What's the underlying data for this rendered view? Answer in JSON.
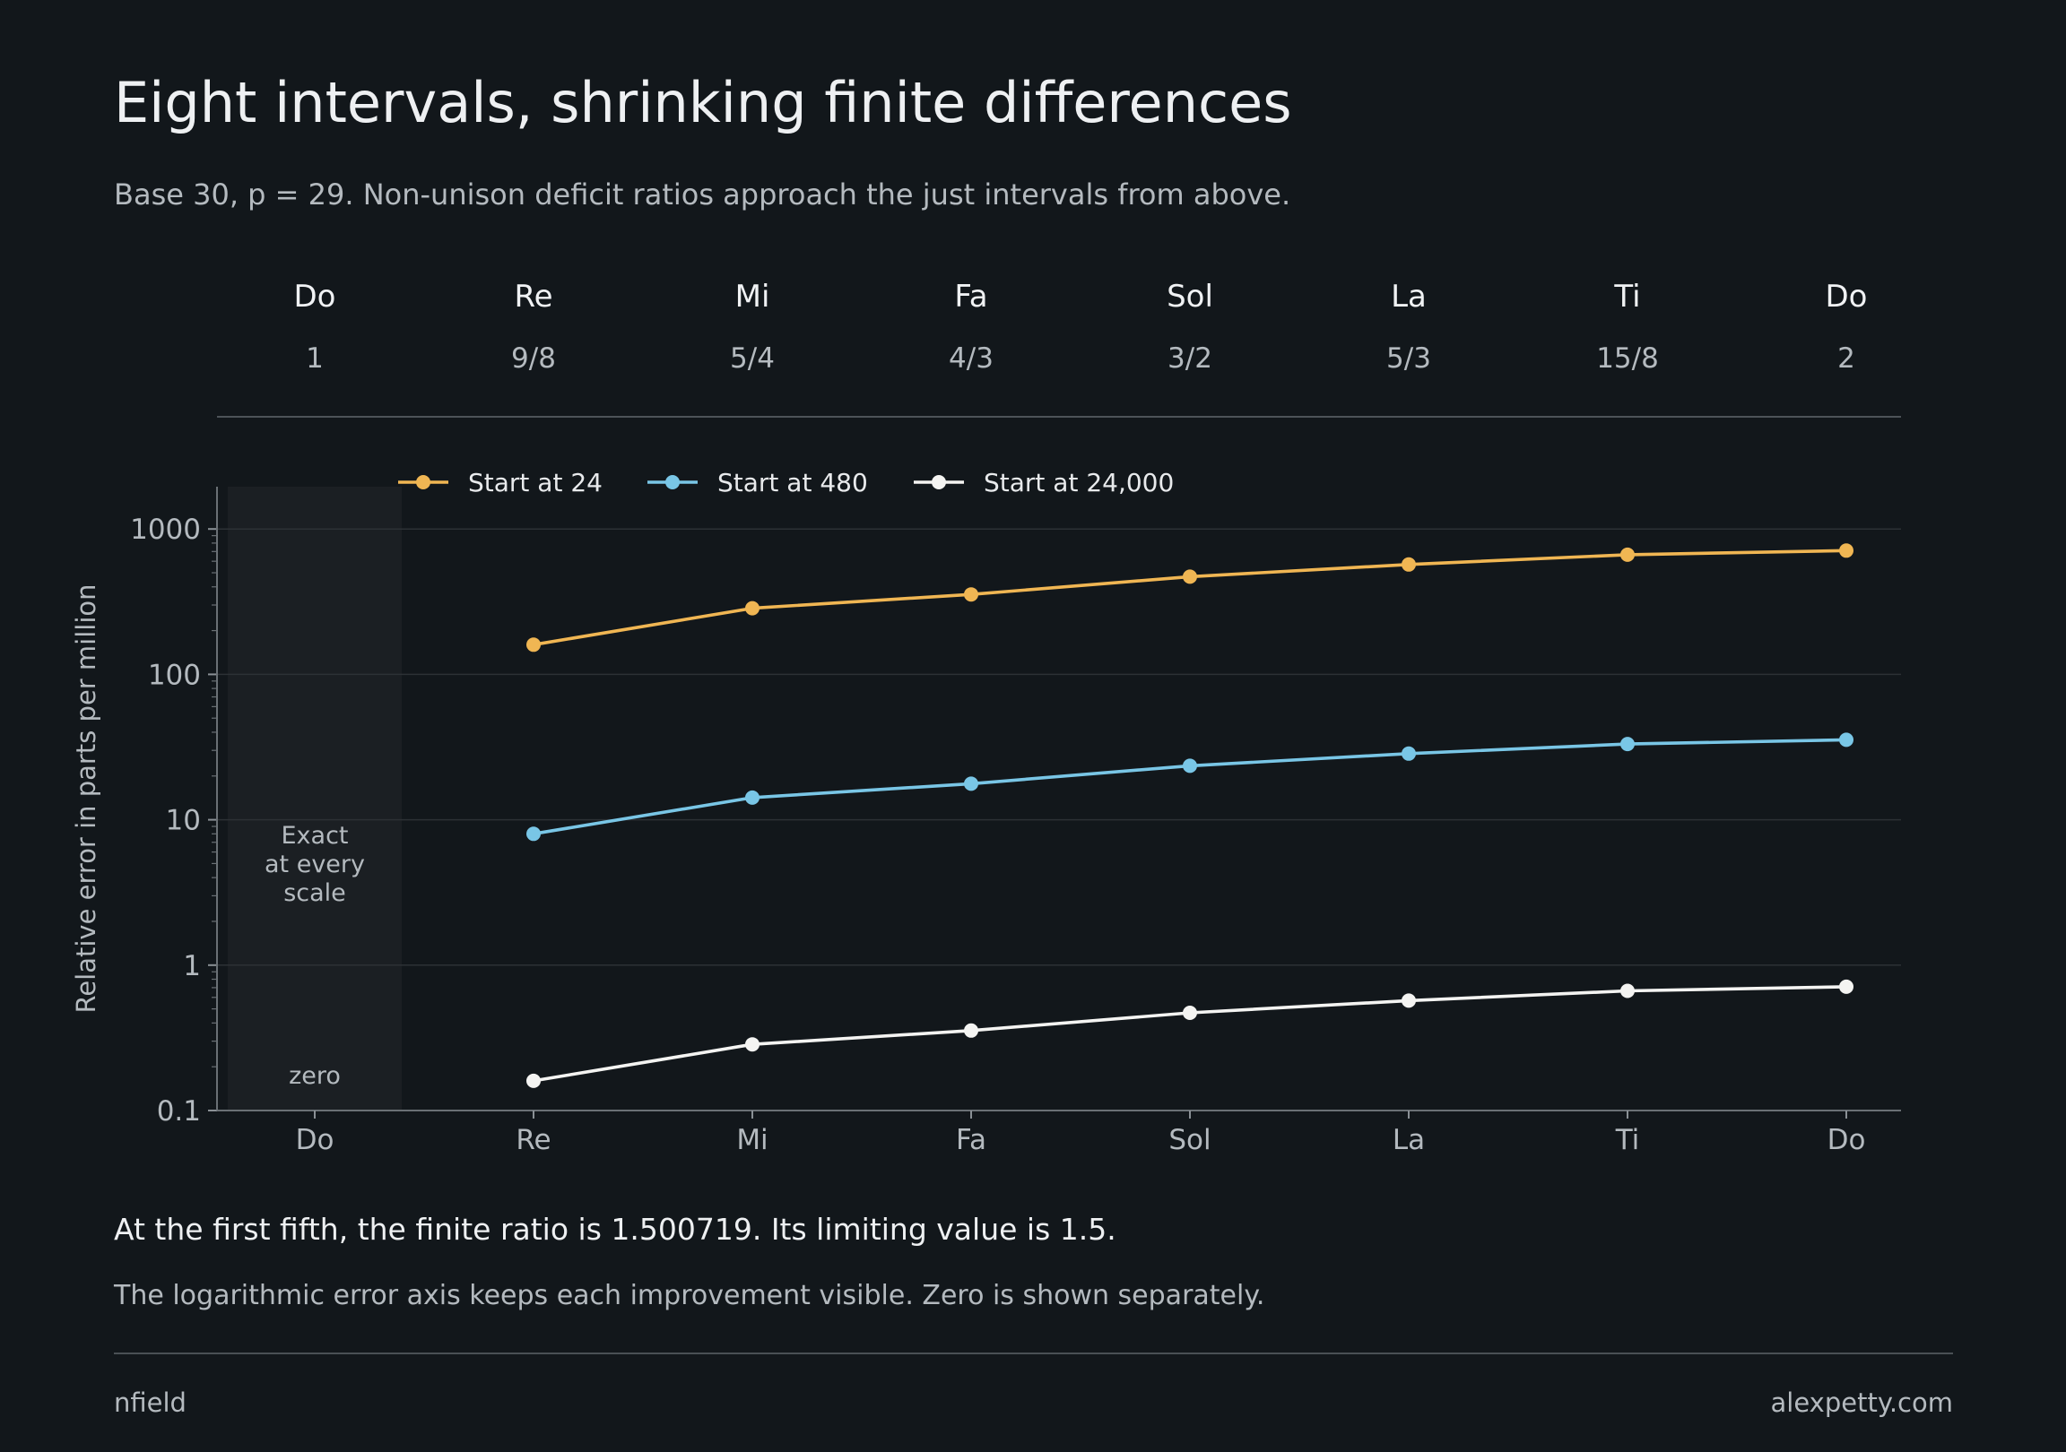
{
  "header": {
    "title": "Eight intervals, shrinking finite differences",
    "subtitle": "Base 30, p = 29. Non-unison deficit ratios approach the just intervals from above."
  },
  "chart_data": {
    "type": "line",
    "y_scale": "log",
    "ylabel": "Relative error in parts per million",
    "xlabel": "",
    "ylim": [
      0.1,
      2000
    ],
    "y_ticks": [
      "0.1",
      "1",
      "10",
      "100",
      "1000"
    ],
    "categories": [
      "Do",
      "Re",
      "Mi",
      "Fa",
      "Sol",
      "La",
      "Ti",
      "Do"
    ],
    "ratios": [
      "1",
      "9/8",
      "5/4",
      "4/3",
      "3/2",
      "5/3",
      "15/8",
      "2"
    ],
    "grid": "horizontal",
    "legend_position": "top-left",
    "series": [
      {
        "name": "Start at 24",
        "color": "#f0b653",
        "values": [
          null,
          160,
          285,
          355,
          470,
          570,
          665,
          710
        ]
      },
      {
        "name": "Start at 480",
        "color": "#79c6e6",
        "values": [
          null,
          8,
          14.2,
          17.7,
          23.5,
          28.5,
          33.2,
          35.5
        ]
      },
      {
        "name": "Start at 24,000",
        "color": "#f4f4f2",
        "values": [
          null,
          0.16,
          0.285,
          0.355,
          0.47,
          0.57,
          0.665,
          0.71
        ]
      }
    ],
    "zero_band": {
      "category_index": 0,
      "label": "Exact\nat every\nscale",
      "zero_label": "zero"
    }
  },
  "notes": {
    "finding": "At the first fifth, the finite ratio is 1.500719. Its limiting value is 1.5.",
    "caption": "The logarithmic error axis keeps each improvement visible. Zero is shown separately."
  },
  "footer": {
    "left": "nfield",
    "right": "alexpetty.com"
  }
}
